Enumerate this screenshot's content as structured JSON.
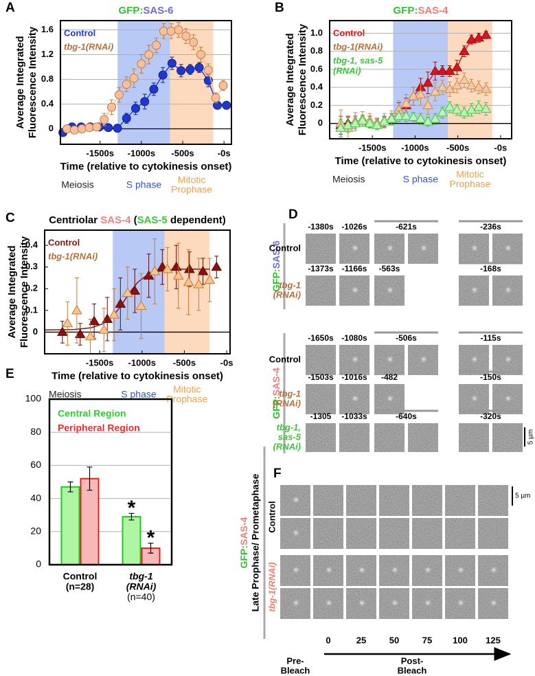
{
  "chart_data": [
    {
      "panel": "A",
      "type": "line",
      "title_parts": [
        "GFP:",
        "SAS-6"
      ],
      "title_colors": [
        "#2ec22e",
        "#6b6bdb"
      ],
      "ylabel": [
        "Average Integrated",
        "Fluorescence Intensity"
      ],
      "xlabel": "Time (relative to cytokinesis onset)",
      "xlim": [
        -1980,
        90
      ],
      "xticks": [
        {
          "value": -1500,
          "label": "-1500s"
        },
        {
          "value": -1000,
          "label": "-1000s"
        },
        {
          "value": -500,
          "label": "-500s"
        },
        {
          "value": 0,
          "label": "-0s"
        }
      ],
      "ylim": [
        -0.25,
        1.75
      ],
      "yticks": [
        0,
        0.4,
        0.8,
        1.2,
        1.6
      ],
      "grid": true,
      "connect": true,
      "phases": [
        {
          "label": [
            "Meiosis"
          ],
          "text_color": "#222222"
        },
        {
          "label": [
            "S phase"
          ],
          "range": [
            -1288,
            -652
          ],
          "color": "#b9c9f6",
          "text_color": "#2f55c8"
        },
        {
          "label": [
            "Mitotic",
            "Prophase"
          ],
          "range": [
            -652,
            -130
          ],
          "color": "#fdd9bd",
          "text_color": "#f0a04a"
        }
      ],
      "series": [
        {
          "name": "Control",
          "color": "#1f37cf",
          "edge": "#0f1f8f",
          "marker": "circle",
          "italic": false,
          "x": [
            -1950,
            -1840,
            -1730,
            -1620,
            -1510,
            -1400,
            -1290,
            -1180,
            -1070,
            -960,
            -850,
            -740,
            -630,
            -520,
            -410,
            -300,
            -190,
            -80,
            30
          ],
          "values": [
            -0.06,
            0.03,
            0.03,
            0.03,
            0.03,
            0.02,
            0.01,
            0.17,
            0.33,
            0.44,
            0.64,
            0.87,
            1.06,
            0.94,
            0.96,
            0.99,
            0.78,
            0.38,
            0.38
          ],
          "errors": [
            0.05,
            0.05,
            0.06,
            0.05,
            0.05,
            0.04,
            0.05,
            0.08,
            0.1,
            0.12,
            0.1,
            0.12,
            0.1,
            0.1,
            0.08,
            0.08,
            0.1,
            0.06,
            0.05
          ]
        },
        {
          "name": "tbg-1(RNAi)",
          "color": "#f7c09a",
          "edge": "#c07a3a",
          "text_color": "#b2713c",
          "marker": "circle",
          "italic": true,
          "x": [
            -1900,
            -1810,
            -1720,
            -1630,
            -1540,
            -1450,
            -1360,
            -1270,
            -1180,
            -1090,
            -1000,
            -910,
            -820,
            -730,
            -640,
            -550,
            -460,
            -370,
            -280,
            -190,
            -100,
            -10
          ],
          "values": [
            0.0,
            -0.02,
            0.0,
            0.02,
            0.03,
            0.15,
            0.35,
            0.55,
            0.72,
            0.82,
            1.05,
            1.2,
            1.35,
            1.58,
            1.58,
            1.6,
            1.5,
            1.4,
            1.2,
            0.95,
            0.5,
            0.7
          ],
          "errors": [
            0.06,
            0.06,
            0.05,
            0.05,
            0.06,
            0.1,
            0.12,
            0.12,
            0.12,
            0.15,
            0.15,
            0.15,
            0.12,
            0.12,
            0.12,
            0.12,
            0.12,
            0.12,
            0.12,
            0.1,
            0.08,
            0.08
          ]
        }
      ]
    },
    {
      "panel": "B",
      "type": "line",
      "title_parts": [
        "GFP:",
        "SAS-4"
      ],
      "title_colors": [
        "#2ec22e",
        "#f07a7a"
      ],
      "ylabel": [
        "Average Integrated",
        "Fluorescence Intensity"
      ],
      "xlabel": "Time (relative to cytokinesis onset)",
      "xlim": [
        -2000,
        130
      ],
      "xticks": [
        {
          "value": -1500,
          "label": "-1500s"
        },
        {
          "value": -1000,
          "label": "-1000s"
        },
        {
          "value": -500,
          "label": "-500s"
        },
        {
          "value": 0,
          "label": "-0s"
        }
      ],
      "ylim": [
        -0.17,
        1.14
      ],
      "yticks": [
        0,
        0.2,
        0.4,
        0.6,
        0.8,
        {
          "value": 1.0,
          "label": "1.0"
        }
      ],
      "grid": true,
      "connect": true,
      "phases": [
        {
          "label": [
            "Meiosis"
          ],
          "text_color": "#222222"
        },
        {
          "label": [
            "S phase"
          ],
          "range": [
            -1257,
            -616
          ],
          "color": "#b9c9f6",
          "text_color": "#2f55c8"
        },
        {
          "label": [
            "Mitotic",
            "Prophase"
          ],
          "range": [
            -616,
            -97
          ],
          "color": "#fdd9bd",
          "text_color": "#f0a04a"
        }
      ],
      "series": [
        {
          "name": "Control",
          "color": "#d9141c",
          "edge": "#a00a10",
          "marker": "triangle",
          "italic": false,
          "x": [
            -1870,
            -1785,
            -1700,
            -1615,
            -1530,
            -1445,
            -1360,
            -1275,
            -1190,
            -1105,
            -1020,
            -935,
            -850,
            -765,
            -680,
            -595,
            -510,
            -425,
            -340,
            -255,
            -170
          ],
          "values": [
            -0.02,
            0.0,
            0.02,
            0.03,
            0.02,
            0.0,
            0.02,
            0.05,
            0.15,
            0.2,
            0.3,
            0.4,
            0.45,
            0.58,
            0.58,
            0.58,
            0.62,
            0.8,
            0.93,
            0.95,
            0.98
          ],
          "errors": [
            0.1,
            0.08,
            0.06,
            0.06,
            0.06,
            0.05,
            0.06,
            0.06,
            0.08,
            0.08,
            0.1,
            0.1,
            0.12,
            0.1,
            0.06,
            0.06,
            0.08,
            0.06,
            0.05,
            0.05,
            0.04
          ]
        },
        {
          "name": "tbg-1(RNAi)",
          "color": "#f7c79e",
          "edge": "#c58b57",
          "text_color": "#b2713c",
          "marker": "triangle",
          "italic": true,
          "x": [
            -1870,
            -1785,
            -1700,
            -1615,
            -1530,
            -1445,
            -1360,
            -1275,
            -1190,
            -1105,
            -1020,
            -935,
            -850,
            -765,
            -680,
            -595,
            -510,
            -425,
            -340,
            -255,
            -170
          ],
          "values": [
            0.0,
            -0.05,
            0.02,
            0.05,
            0.03,
            0.0,
            0.03,
            0.06,
            0.15,
            0.22,
            0.3,
            0.32,
            0.2,
            0.35,
            0.4,
            0.38,
            0.42,
            0.48,
            0.42,
            0.4,
            0.38
          ],
          "errors": [
            0.15,
            0.12,
            0.1,
            0.08,
            0.08,
            0.06,
            0.08,
            0.08,
            0.1,
            0.1,
            0.1,
            0.12,
            0.1,
            0.1,
            0.08,
            0.08,
            0.08,
            0.08,
            0.07,
            0.07,
            0.07
          ]
        },
        {
          "name": [
            "tbg-1, sas-5",
            "(RNAi)"
          ],
          "color": "#bdf2bd",
          "edge": "#3cc83c",
          "text_color": "#3bc43b",
          "marker": "triangle",
          "italic": true,
          "x": [
            -1870,
            -1785,
            -1700,
            -1615,
            -1530,
            -1445,
            -1360,
            -1275,
            -1190,
            -1105,
            -1020,
            -935,
            -850,
            -765,
            -680,
            -595,
            -510,
            -425,
            -340,
            -255,
            -170
          ],
          "values": [
            -0.05,
            -0.02,
            0.0,
            0.03,
            0.0,
            -0.02,
            0.02,
            0.05,
            0.08,
            0.08,
            0.07,
            0.05,
            0.02,
            0.05,
            0.12,
            0.18,
            0.15,
            0.12,
            0.15,
            0.18,
            0.16
          ],
          "errors": [
            0.1,
            0.08,
            0.06,
            0.06,
            0.05,
            0.05,
            0.05,
            0.06,
            0.06,
            0.06,
            0.05,
            0.06,
            0.05,
            0.06,
            0.06,
            0.06,
            0.06,
            0.06,
            0.07,
            0.07,
            0.07
          ]
        }
      ]
    },
    {
      "panel": "C",
      "type": "line",
      "title_parts": [
        "Centriolar ",
        "SAS-4",
        " (",
        "SAS-5",
        " dependent)"
      ],
      "title_colors": [
        "#000000",
        "#f08080",
        "#000000",
        "#33cc33",
        "#000000"
      ],
      "ylabel": [
        "Average Integrated",
        "Fluorescence Intensity"
      ],
      "xlabel": "Time (relative to cytokinesis onset)",
      "xlim": [
        -2150,
        40
      ],
      "xticks": [
        {
          "value": -1500,
          "label": "-1500s"
        },
        {
          "value": -1000,
          "label": "-1000s"
        },
        {
          "value": -500,
          "label": "-500s"
        },
        {
          "value": 0,
          "label": "-0s"
        }
      ],
      "ylim": [
        -0.1,
        0.47
      ],
      "yticks": [
        0,
        0.1,
        0.2,
        0.3,
        0.4
      ],
      "grid": false,
      "connect": false,
      "phases": [
        {
          "label": [
            "Meiosis"
          ],
          "text_color": "#222222"
        },
        {
          "label": [
            "S phase"
          ],
          "range": [
            -1345,
            -733
          ],
          "color": "#b9c9f6",
          "text_color": "#2f55c8"
        },
        {
          "label": [
            "Mitotic",
            "Prophase"
          ],
          "range": [
            -733,
            -204
          ],
          "color": "#fdd9bd",
          "text_color": "#f0a04a"
        }
      ],
      "fit_curve": {
        "color": "#8b1010",
        "x": [
          -2150,
          -1800,
          -1600,
          -1450,
          -1350,
          -1250,
          -1150,
          -1050,
          -950,
          -800,
          -600,
          -200
        ],
        "values": [
          0.01,
          0.012,
          0.02,
          0.04,
          0.07,
          0.12,
          0.18,
          0.23,
          0.26,
          0.28,
          0.29,
          0.29
        ]
      },
      "series": [
        {
          "name": "Control",
          "color": "#8b1010",
          "edge": "#5a0808",
          "marker": "triangle",
          "italic": false,
          "x": [
            -1940,
            -1730,
            -1565,
            -1410,
            -1255,
            -1085,
            -920,
            -760,
            -595,
            -440,
            -280,
            -120
          ],
          "values": [
            0.0,
            -0.01,
            0.05,
            0.06,
            0.13,
            0.19,
            0.26,
            0.3,
            0.3,
            0.29,
            0.28,
            0.3
          ],
          "errors": [
            0.05,
            0.05,
            0.08,
            0.1,
            0.12,
            0.1,
            0.1,
            0.08,
            0.1,
            0.08,
            0.06,
            0.05
          ]
        },
        {
          "name": "tbg-1(RNAi)",
          "color": "#f9c48f",
          "edge": "#c9782c",
          "text_color": "#b2713c",
          "marker": "triangle",
          "italic": true,
          "x": [
            -1880,
            -1770,
            -1610,
            -1450,
            -1330,
            -1170,
            -1010,
            -850,
            -700,
            -570,
            -450,
            -330,
            -200
          ],
          "values": [
            0.04,
            0.1,
            -0.02,
            0.01,
            0.08,
            0.18,
            0.12,
            0.28,
            0.29,
            0.26,
            0.23,
            0.22,
            0.24
          ],
          "errors": [
            0.1,
            0.15,
            0.08,
            0.1,
            0.12,
            0.12,
            0.15,
            0.15,
            0.1,
            0.15,
            0.15,
            0.12,
            0.1
          ]
        }
      ]
    },
    {
      "panel": "E",
      "type": "bar",
      "categories": [
        [
          "Control"
        ],
        [
          "tbg-1",
          "(RNAi)"
        ]
      ],
      "category_italic": [
        false,
        true
      ],
      "sample_sizes": [
        "(n=28)",
        "(n=40)"
      ],
      "ylim": [
        0,
        100
      ],
      "yticks": [
        0,
        20,
        40,
        60,
        80,
        100
      ],
      "grid": true,
      "legend": "upper left",
      "series": [
        {
          "name": "Central Region",
          "color": "#aef5a4",
          "edge": "#1ec81e",
          "text_color": "#2ad22a",
          "values": [
            47,
            29
          ],
          "errors": [
            3,
            2
          ]
        },
        {
          "name": "Peripheral Region",
          "color": "#f7b8b8",
          "edge": "#e42020",
          "text_color": "#f02a2a",
          "values": [
            52,
            10
          ],
          "errors": [
            7,
            3
          ]
        }
      ],
      "annotations": [
        {
          "text": "*",
          "series": 0,
          "category": 1
        },
        {
          "text": "*",
          "series": 1,
          "category": 1
        }
      ]
    }
  ],
  "image_panels": [
    {
      "panel": "D",
      "scale_bar": "5 µm",
      "groups": [
        {
          "protein_parts": [
            "GFP:",
            "SAS-6"
          ],
          "protein_colors": [
            "#2ec22e",
            "#6b6bdb"
          ],
          "rows": [
            {
              "label": [
                "Control"
              ],
              "label_color": "#000000",
              "italic": false,
              "times": [
                "-1380s",
                "-1026s",
                "-621s",
                "-236s"
              ]
            },
            {
              "label": [
                "tbg-1",
                "(RNAi)"
              ],
              "label_color": "#b2713c",
              "italic": true,
              "times": [
                "-1373s",
                "-1166s",
                "-563s",
                "-168s"
              ]
            }
          ]
        },
        {
          "protein_parts": [
            "GFP:",
            "SAS-4"
          ],
          "protein_colors": [
            "#2ec22e",
            "#f07a7a"
          ],
          "rows": [
            {
              "label": [
                "Control"
              ],
              "label_color": "#000000",
              "italic": false,
              "times": [
                "-1650s",
                "-1080s",
                "-506s",
                "-115s"
              ]
            },
            {
              "label": [
                "tbg-1",
                "(RNAi)"
              ],
              "label_color": "#b2713c",
              "italic": true,
              "times": [
                "-1503s",
                "-1016s",
                "-482",
                "-150s"
              ]
            },
            {
              "label": [
                "tbg-1,",
                "sas-5",
                "(RNAi)"
              ],
              "label_color": "#3bc43b",
              "italic": true,
              "times": [
                "-1305",
                "-1033s",
                "-640s",
                "-320s"
              ]
            }
          ]
        }
      ]
    },
    {
      "panel": "F",
      "protein_parts": [
        "GFP:",
        "SAS-4"
      ],
      "protein_colors": [
        "#2ec22e",
        "#f07a7a"
      ],
      "stage": "Late Prophase/ Prometaphase",
      "rows": [
        {
          "label": "Control",
          "label_color": "#000000",
          "italic": false
        },
        {
          "label": "tbg-1(RNAi)",
          "label_color": "#e8826a",
          "italic": true
        }
      ],
      "times": [
        "0",
        "25",
        "50",
        "75",
        "100",
        "125"
      ],
      "pre": [
        "Pre-",
        "Bleach"
      ],
      "post": [
        "Post-",
        "Bleach"
      ],
      "scale_bar": "5 µm"
    }
  ]
}
